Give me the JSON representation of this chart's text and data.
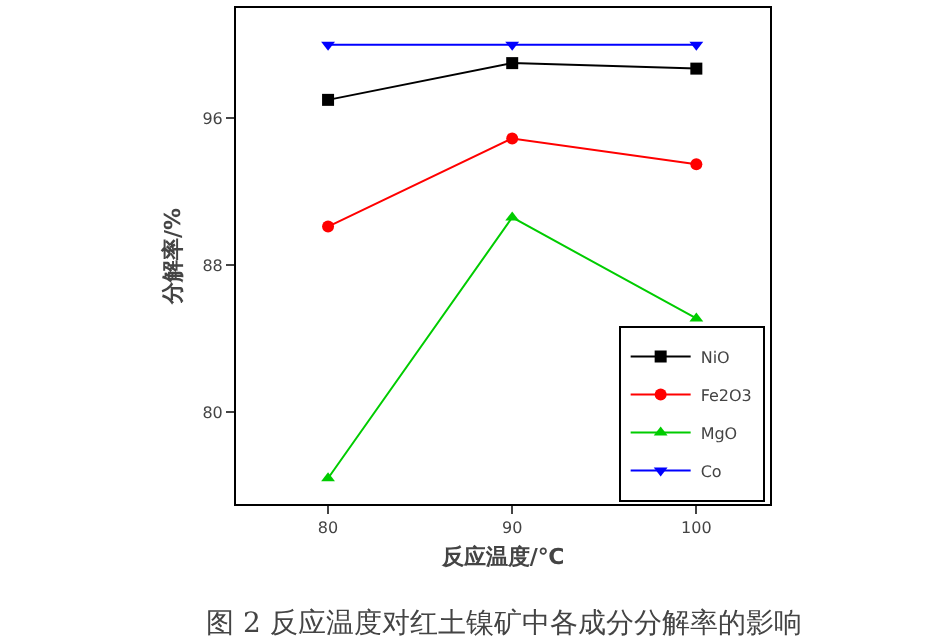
{
  "chart_data": {
    "type": "line",
    "xlabel": "反应温度/℃",
    "ylabel": "分解率/%",
    "x": [
      80,
      90,
      100
    ],
    "xlim": [
      75,
      104
    ],
    "xticks": [
      80,
      90,
      100
    ],
    "ylim": [
      75,
      102
    ],
    "yticks": [
      80,
      88,
      96
    ],
    "grid": false,
    "legend": "bottom right",
    "annotations": [
      "图 2 反应温度对红土镍矿中各成分分解率的影响"
    ],
    "series": [
      {
        "name": "NiO",
        "color": "#000000",
        "marker": "square",
        "values": [
          97.0,
          99.0,
          98.7
        ]
      },
      {
        "name": "Fe2O3",
        "color": "#ff0000",
        "marker": "circle",
        "values": [
          90.1,
          94.9,
          93.5
        ]
      },
      {
        "name": "MgO",
        "color": "#00cc00",
        "marker": "triangle",
        "values": [
          76.4,
          90.6,
          85.1
        ]
      },
      {
        "name": "Co",
        "color": "#0000ff",
        "marker": "triangle-down",
        "values": [
          100.0,
          100.0,
          100.0
        ]
      }
    ]
  }
}
